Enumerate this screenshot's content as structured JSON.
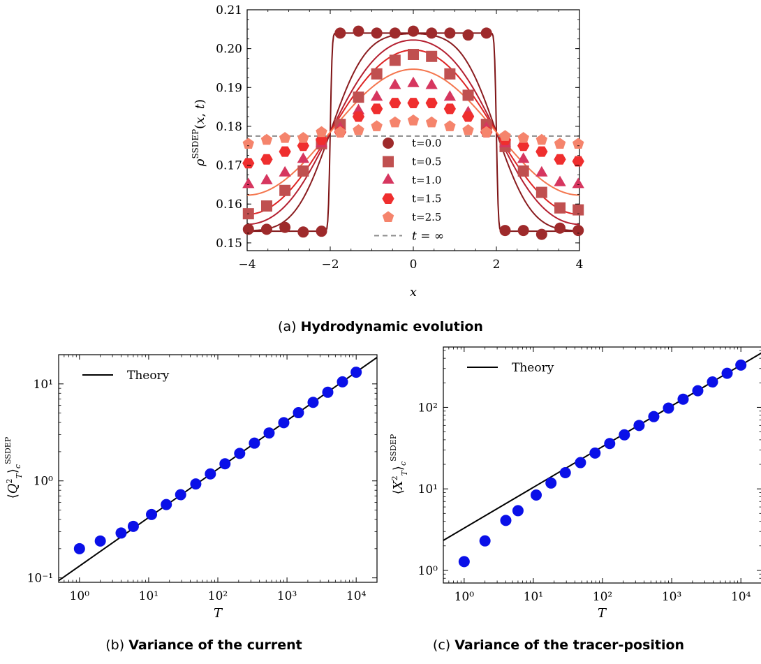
{
  "figure": {
    "captions": [
      {
        "prefix": "(a)",
        "title": "Hydrodynamic evolution"
      },
      {
        "prefix": "(b)",
        "title": "Variance of the current"
      },
      {
        "prefix": "(c)",
        "title": "Variance of the tracer-position"
      }
    ]
  },
  "chart_data": [
    {
      "type": "line",
      "id": "a",
      "xlabel": "x",
      "ylabel": "ρ^SSDEP(x, t)",
      "xlim": [
        -4,
        4
      ],
      "ylim": [
        0.148,
        0.21
      ],
      "xticks": [
        -4,
        -2,
        0,
        2,
        4
      ],
      "xtick_labels": [
        "−4",
        "−2",
        "0",
        "2",
        "4"
      ],
      "yticks": [
        0.15,
        0.16,
        0.17,
        0.18,
        0.19,
        0.2,
        0.21
      ],
      "ytick_labels": [
        "0.15",
        "0.16",
        "0.17",
        "0.18",
        "0.19",
        "0.20",
        "0.21"
      ],
      "legend_position": "center-bottom",
      "series": [
        {
          "name": "t=0.0",
          "t": 0.0,
          "marker": "circle",
          "color": "#9e2a2b",
          "line_color": "#7f1416",
          "x": [
            -3.97,
            -3.53,
            -3.09,
            -2.65,
            -2.21,
            -1.76,
            -1.32,
            -0.88,
            -0.44,
            0.0,
            0.44,
            0.88,
            1.32,
            1.76,
            2.21,
            2.65,
            3.09,
            3.53,
            3.97
          ],
          "y": [
            0.1535,
            0.1535,
            0.154,
            0.1528,
            0.153,
            0.204,
            0.2045,
            0.204,
            0.204,
            0.2045,
            0.204,
            0.204,
            0.2035,
            0.204,
            0.1532,
            0.1532,
            0.1522,
            0.1538,
            0.1532
          ]
        },
        {
          "name": "t=0.5",
          "t": 0.5,
          "marker": "square",
          "color": "#c05050",
          "line_color": "#8a1c1f",
          "x": [
            -3.97,
            -3.53,
            -3.09,
            -2.65,
            -2.21,
            -1.76,
            -1.32,
            -0.88,
            -0.44,
            0.0,
            0.44,
            0.88,
            1.32,
            1.76,
            2.21,
            2.65,
            3.09,
            3.53,
            3.97
          ],
          "y": [
            0.1575,
            0.1595,
            0.1635,
            0.1685,
            0.1755,
            0.1805,
            0.1875,
            0.1935,
            0.197,
            0.1985,
            0.198,
            0.1935,
            0.188,
            0.1805,
            0.1748,
            0.1685,
            0.163,
            0.159,
            0.1585
          ]
        },
        {
          "name": "t=1.0",
          "t": 1.0,
          "marker": "triangle",
          "color": "#d6365f",
          "line_color": "#b41f30",
          "x": [
            -3.97,
            -3.53,
            -3.09,
            -2.65,
            -2.21,
            -1.76,
            -1.32,
            -0.88,
            -0.44,
            0.0,
            0.44,
            0.88,
            1.32,
            1.76,
            2.21,
            2.65,
            3.09,
            3.53,
            3.97
          ],
          "y": [
            0.165,
            0.166,
            0.168,
            0.1715,
            0.1755,
            0.1795,
            0.184,
            0.1875,
            0.1905,
            0.191,
            0.1905,
            0.1875,
            0.1835,
            0.1795,
            0.1755,
            0.1715,
            0.168,
            0.1655,
            0.165
          ]
        },
        {
          "name": "t=1.5",
          "t": 1.5,
          "marker": "hexagon",
          "color": "#ef2e2e",
          "line_color": "#dd2323",
          "x": [
            -3.97,
            -3.53,
            -3.09,
            -2.65,
            -2.21,
            -1.76,
            -1.32,
            -0.88,
            -0.44,
            0.0,
            0.44,
            0.88,
            1.32,
            1.76,
            2.21,
            2.65,
            3.09,
            3.53,
            3.97
          ],
          "y": [
            0.1705,
            0.1715,
            0.1735,
            0.175,
            0.1765,
            0.1785,
            0.1825,
            0.1845,
            0.186,
            0.186,
            0.186,
            0.1845,
            0.1825,
            0.1785,
            0.1765,
            0.175,
            0.1735,
            0.1715,
            0.171
          ]
        },
        {
          "name": "t=2.5",
          "t": 2.5,
          "marker": "pentagon",
          "color": "#f5846c",
          "line_color": "#f4764e",
          "x": [
            -3.97,
            -3.53,
            -3.09,
            -2.65,
            -2.21,
            -1.76,
            -1.32,
            -0.88,
            -0.44,
            0.0,
            0.44,
            0.88,
            1.32,
            1.76,
            2.21,
            2.65,
            3.09,
            3.53,
            3.97
          ],
          "y": [
            0.1755,
            0.1765,
            0.177,
            0.177,
            0.1785,
            0.1785,
            0.179,
            0.18,
            0.181,
            0.1815,
            0.181,
            0.18,
            0.179,
            0.1785,
            0.1775,
            0.177,
            0.1765,
            0.1755,
            0.1755
          ]
        },
        {
          "name": "t = ∞",
          "t": "inf",
          "style": "dashed",
          "color": "#8c8c8c",
          "y_const": 0.1775
        }
      ],
      "model": {
        "rho_plus": 0.204,
        "rho_minus": 0.153,
        "edge": 2
      }
    },
    {
      "type": "scatter",
      "id": "b",
      "scale": "log-log",
      "xlabel": "T",
      "ylabel": "⟨Q_T²⟩_c^SSDEP",
      "xlim": [
        0.5,
        20000
      ],
      "ylim": [
        0.09,
        20
      ],
      "xticks": [
        1,
        10,
        100,
        1000,
        10000
      ],
      "xtick_labels": [
        "10⁰",
        "10¹",
        "10²",
        "10³",
        "10⁴"
      ],
      "yticks": [
        0.1,
        1,
        10
      ],
      "ytick_labels": [
        "10⁻¹",
        "10⁰",
        "10¹"
      ],
      "legend_position": "top-left",
      "series": [
        {
          "name": "Theory",
          "style": "line",
          "color": "#000000",
          "coef": 0.1325,
          "power": 0.5
        },
        {
          "marker": "circle",
          "color": "#0a10e8",
          "x": [
            1,
            2,
            4,
            6,
            11,
            18,
            29,
            48,
            78,
            127,
            207,
            338,
            551,
            898,
            1463,
            2384,
            3885,
            6332,
            10000
          ],
          "y": [
            0.2,
            0.24,
            0.29,
            0.34,
            0.45,
            0.57,
            0.72,
            0.93,
            1.18,
            1.5,
            1.92,
            2.45,
            3.12,
            3.98,
            5.05,
            6.45,
            8.2,
            10.5,
            13.2
          ]
        }
      ]
    },
    {
      "type": "scatter",
      "id": "c",
      "scale": "log-log",
      "xlabel": "T",
      "ylabel": "⟨X_T²⟩_c^SSDEP",
      "xlim": [
        0.5,
        20000
      ],
      "ylim": [
        0.7,
        550
      ],
      "xticks": [
        1,
        10,
        100,
        1000,
        10000
      ],
      "xtick_labels": [
        "10⁰",
        "10¹",
        "10²",
        "10³",
        "10⁴"
      ],
      "yticks": [
        1,
        10,
        100
      ],
      "ytick_labels": [
        "10⁰",
        "10¹",
        "10²"
      ],
      "legend_position": "top-left",
      "series": [
        {
          "name": "Theory",
          "style": "line",
          "color": "#000000",
          "coef": 3.3,
          "power": 0.5
        },
        {
          "marker": "circle",
          "color": "#0a10e8",
          "x": [
            1,
            2,
            4,
            6,
            11,
            18,
            29,
            48,
            78,
            127,
            207,
            338,
            551,
            898,
            1463,
            2384,
            3885,
            6332,
            10000
          ],
          "y": [
            1.28,
            2.3,
            4.1,
            5.4,
            8.4,
            11.8,
            15.8,
            21,
            27.5,
            36,
            46,
            60,
            77,
            98,
            126,
            160,
            205,
            262,
            330
          ]
        }
      ]
    }
  ]
}
